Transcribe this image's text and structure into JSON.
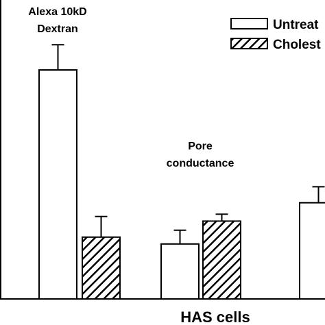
{
  "chart_data": {
    "type": "bar",
    "ylim": [
      0,
      100
    ],
    "series": [
      {
        "name": "Untreat",
        "pattern": "open",
        "color": "#ffffff"
      },
      {
        "name": "Cholest",
        "pattern": "hatched",
        "color": "#ffffff"
      }
    ],
    "groups": [
      {
        "label": "Alexa 10kD Dextran",
        "label_lines": [
          "Alexa 10kD",
          "Dextran"
        ],
        "values": [
          100,
          27
        ],
        "errors": [
          11,
          9
        ]
      },
      {
        "label": "Pore conductance",
        "label_lines": [
          "Pore",
          "conductance"
        ],
        "values": [
          24,
          34
        ],
        "errors": [
          6,
          3
        ]
      },
      {
        "label": "",
        "label_lines": [],
        "values": [
          42
        ],
        "errors": [
          7
        ]
      }
    ],
    "xlabel": "HAS cells",
    "ylabel": "",
    "grid": false,
    "legend": {
      "placement": "top-right"
    }
  },
  "ink_color": "#000000"
}
